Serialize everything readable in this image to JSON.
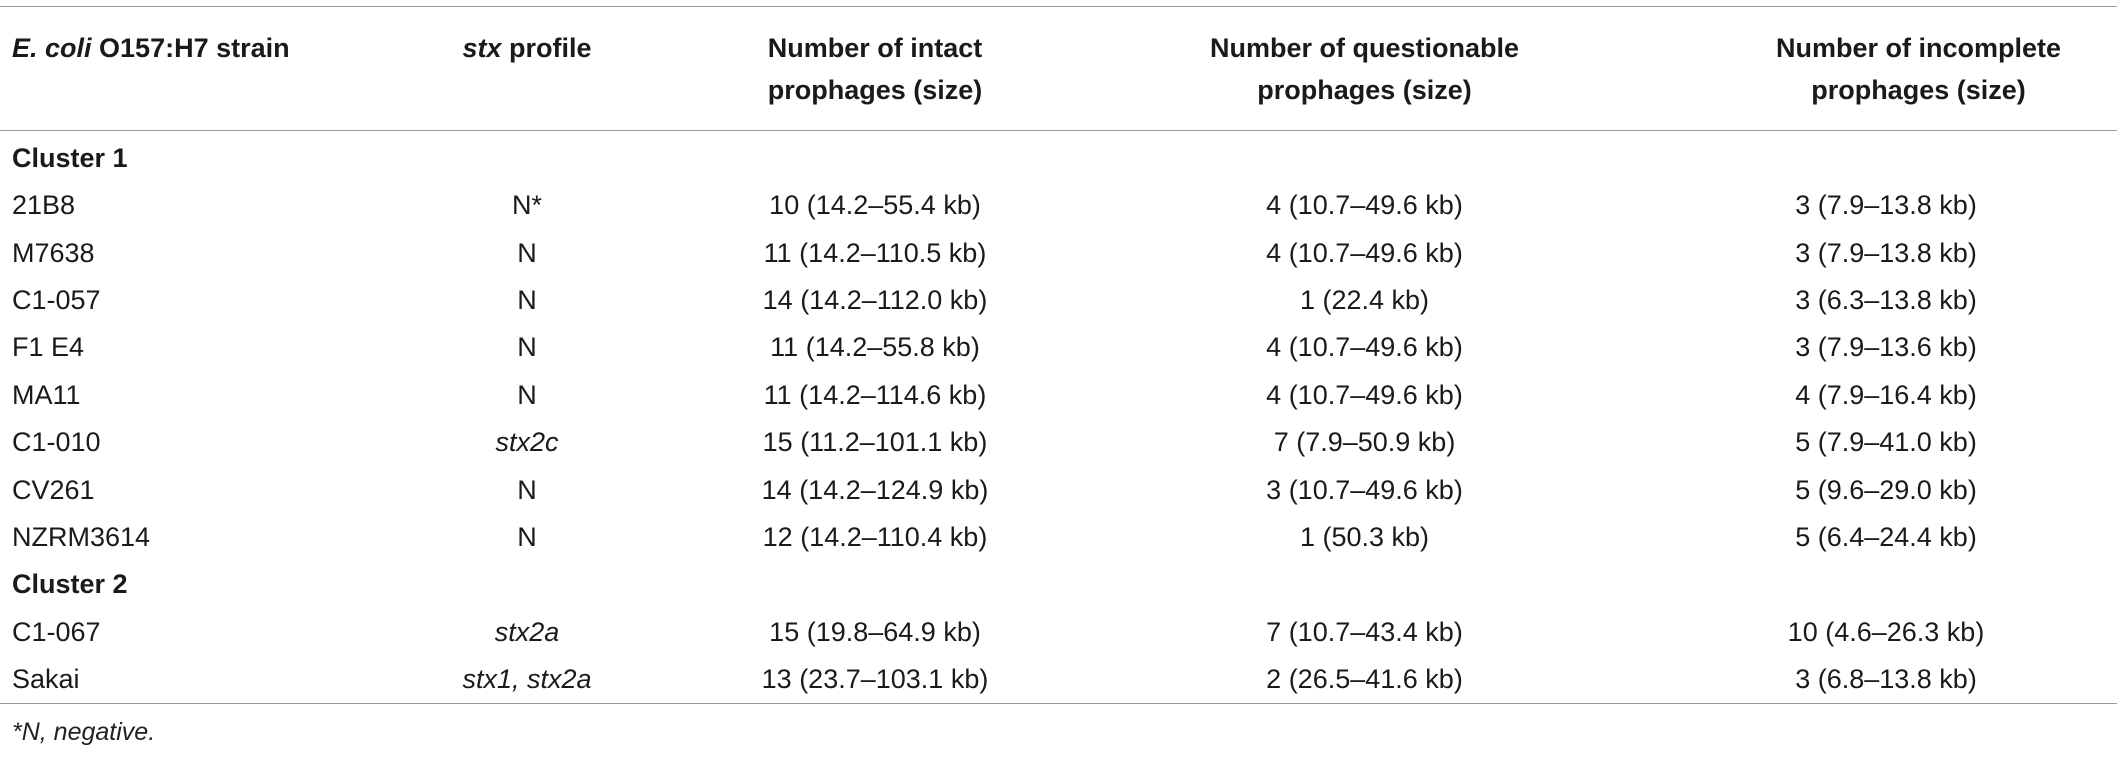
{
  "table": {
    "headers": {
      "strain_italic": "E. coli",
      "strain_rest": " O157:H7 strain",
      "stx_italic": "stx",
      "stx_rest": " profile",
      "intact_line1": "Number of intact",
      "intact_line2": "prophages (size)",
      "questionable_line1": "Number of questionable",
      "questionable_line2": "prophages (size)",
      "incomplete_line1": "Number of incomplete",
      "incomplete_line2": "prophages (size)"
    },
    "clusters": [
      {
        "label": "Cluster 1",
        "rows": [
          {
            "strain": "21B8",
            "stx": "N*",
            "intact": "10 (14.2–55.4 kb)",
            "questionable": "4 (10.7–49.6 kb)",
            "incomplete": "3 (7.9–13.8 kb)"
          },
          {
            "strain": "M7638",
            "stx": "N",
            "intact": "11 (14.2–110.5 kb)",
            "questionable": "4 (10.7–49.6 kb)",
            "incomplete": "3 (7.9–13.8 kb)"
          },
          {
            "strain": "C1-057",
            "stx": "N",
            "intact": "14 (14.2–112.0 kb)",
            "questionable": "1 (22.4 kb)",
            "incomplete": "3 (6.3–13.8 kb)"
          },
          {
            "strain": "F1 E4",
            "stx": "N",
            "intact": "11 (14.2–55.8 kb)",
            "questionable": "4 (10.7–49.6 kb)",
            "incomplete": "3 (7.9–13.6 kb)"
          },
          {
            "strain": "MA11",
            "stx": "N",
            "intact": "11 (14.2–114.6 kb)",
            "questionable": "4 (10.7–49.6 kb)",
            "incomplete": "4 (7.9–16.4 kb)"
          },
          {
            "strain": "C1-010",
            "stx": "stx2c",
            "intact": "15 (11.2–101.1 kb)",
            "questionable": "7 (7.9–50.9 kb)",
            "incomplete": "5 (7.9–41.0 kb)"
          },
          {
            "strain": "CV261",
            "stx": "N",
            "intact": "14 (14.2–124.9 kb)",
            "questionable": "3 (10.7–49.6 kb)",
            "incomplete": "5 (9.6–29.0 kb)"
          },
          {
            "strain": "NZRM3614",
            "stx": "N",
            "intact": "12 (14.2–110.4 kb)",
            "questionable": "1 (50.3 kb)",
            "incomplete": "5 (6.4–24.4 kb)"
          }
        ]
      },
      {
        "label": "Cluster 2",
        "rows": [
          {
            "strain": "C1-067",
            "stx": "stx2a",
            "intact": "15 (19.8–64.9 kb)",
            "questionable": "7 (10.7–43.4 kb)",
            "incomplete": "10 (4.6–26.3 kb)"
          },
          {
            "strain": "Sakai",
            "stx": "stx1, stx2a",
            "intact": "13 (23.7–103.1 kb)",
            "questionable": "2 (26.5–41.6 kb)",
            "incomplete": "3 (6.8–13.8 kb)"
          }
        ]
      }
    ]
  },
  "footnote": "*N, negative."
}
